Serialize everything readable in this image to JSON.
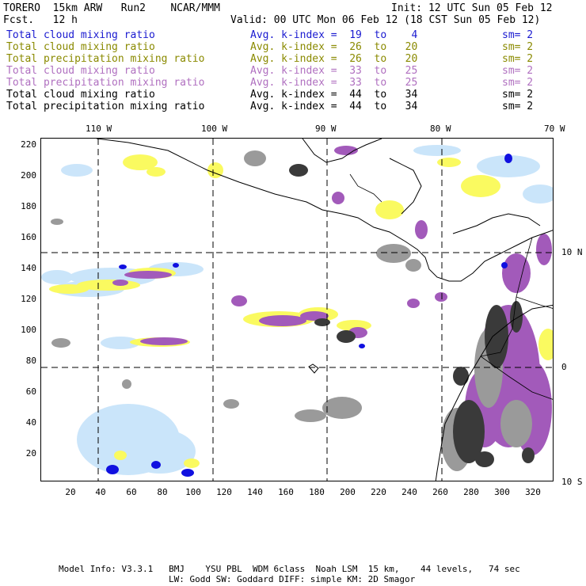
{
  "header": {
    "left1": "TORERO  15km ARW   Run2    NCAR/MMM",
    "left2": "Fcst.   12 h",
    "init": "Init: 12 UTC Sun 05 Feb 12",
    "valid": "Valid: 00 UTC Mon 06 Feb 12 (18 CST Sun 05 Feb 12)"
  },
  "legend": [
    {
      "field": "Total cloud mixing ratio",
      "index": "Avg. k-index =  19  to    4",
      "sm": "sm= 2",
      "color": "#1a1ad0"
    },
    {
      "field": "Total cloud mixing ratio",
      "index": "Avg. k-index =  26  to   20",
      "sm": "sm= 2",
      "color": "#8a8a00"
    },
    {
      "field": "Total precipitation mixing ratio",
      "index": "Avg. k-index =  26  to   20",
      "sm": "sm= 2",
      "color": "#8a8a00"
    },
    {
      "field": "Total cloud mixing ratio",
      "index": "Avg. k-index =  33  to   25",
      "sm": "sm= 2",
      "color": "#b070c0"
    },
    {
      "field": "Total precipitation mixing ratio",
      "index": "Avg. k-index =  33  to   25",
      "sm": "sm= 2",
      "color": "#b070c0"
    },
    {
      "field": "Total cloud mixing ratio",
      "index": "Avg. k-index =  44  to   34",
      "sm": "sm= 2",
      "color": "#000000"
    },
    {
      "field": "Total precipitation mixing ratio",
      "index": "Avg. k-index =  44  to   34",
      "sm": "sm= 2",
      "color": "#000000"
    }
  ],
  "map": {
    "lon_labels": [
      "110 W",
      "100 W",
      "90 W",
      "80 W",
      "70 W"
    ],
    "lat_labels": [
      "10 N",
      "0",
      "10 S"
    ],
    "x_ticks": [
      "20",
      "40",
      "60",
      "80",
      "100",
      "120",
      "140",
      "160",
      "180",
      "200",
      "220",
      "240",
      "260",
      "280",
      "300",
      "320"
    ],
    "y_ticks": [
      "220",
      "200",
      "180",
      "160",
      "140",
      "120",
      "100",
      "80",
      "60",
      "40",
      "20"
    ],
    "colors": {
      "blue": "#1010e0",
      "light_blue": "#c8e4fa",
      "yellow": "#fafa60",
      "purple": "#a25aba",
      "dark_gray": "#3a3a3a",
      "gray": "#9a9a9a"
    }
  },
  "footer": {
    "line1": "Model Info: V3.3.1   BMJ    YSU PBL  WDM 6class  Noah LSM  15 km,    44 levels,   74 sec",
    "line2": "LW: Godd SW: Goddard DIFF: simple KM: 2D Smagor"
  }
}
